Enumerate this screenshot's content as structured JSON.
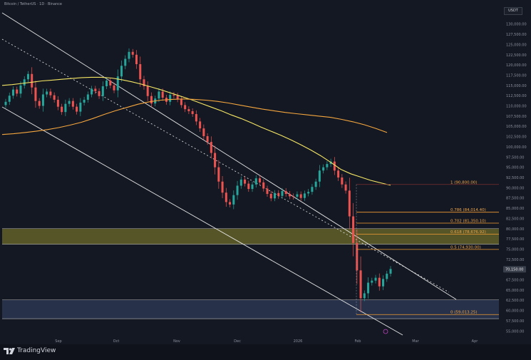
{
  "header": {
    "title": "Bitcoin / TetherUS · 1D · Binance"
  },
  "currency_label": "USDT",
  "logo": {
    "name": "TradingView"
  },
  "chart_data": {
    "type": "candlestick",
    "instrument": "Bitcoin / TetherUS",
    "x_ticks": [
      "Sep",
      "Oct",
      "Nov",
      "Dec",
      "2026",
      "Feb",
      "Mar",
      "Apr"
    ],
    "price_ticks": [
      130000,
      127500,
      125000,
      122500,
      120000,
      117500,
      115000,
      112500,
      110000,
      107500,
      105000,
      102500,
      100000,
      97500,
      95000,
      92500,
      90000,
      87500,
      85000,
      82500,
      80000,
      77500,
      75000,
      72500,
      70000,
      67500,
      65000,
      62500,
      60000,
      57500,
      55000
    ],
    "current_price": 70150,
    "series": [
      {
        "name": "close",
        "color": "#26a69a",
        "values": [
          111000,
          112500,
          114000,
          113000,
          115000,
          116500,
          117800,
          114500,
          111200,
          110000,
          112800,
          113500,
          112600,
          111500,
          109800,
          108500,
          110500,
          111200,
          109800,
          108600,
          110800,
          111500,
          112800,
          114200,
          113600,
          112400,
          114800,
          116200,
          115000,
          113800,
          117200,
          119800,
          121500,
          123200,
          122500,
          120200,
          116500,
          114800,
          112400,
          110600,
          111800,
          113500,
          112000,
          111000,
          112700,
          112500,
          111600,
          110200,
          109200,
          108700,
          108000,
          106200,
          104500,
          102600,
          101200,
          98500,
          95000,
          91500,
          88800,
          86500,
          85900,
          88200,
          90500,
          92000,
          91000,
          89700,
          90800,
          92300,
          91300,
          89800,
          88500,
          87400,
          88700,
          88000,
          89200,
          88500,
          87900,
          87800,
          88400,
          87500,
          88600,
          89000,
          90200,
          91500,
          94200,
          95000,
          95800,
          96400,
          94200,
          92500,
          90800,
          89300,
          83000,
          76500,
          69800,
          63000,
          64200,
          66800,
          67300,
          68000,
          65900,
          67700,
          69000,
          70150
        ]
      },
      {
        "name": "MA-50",
        "color": "#f5e663",
        "values": [
          115000,
          115200,
          115500,
          115800,
          116100,
          116300,
          116500,
          116700,
          116900,
          117000,
          117000,
          116800,
          116400,
          115900,
          115300,
          114600,
          113900,
          113100,
          112300,
          111500,
          110600,
          109700,
          108800,
          107800,
          106900,
          105900,
          104800,
          103800,
          102800,
          101700,
          100500,
          99200,
          97800,
          96200,
          94500,
          93400,
          92600,
          91800,
          91200,
          90600
        ]
      },
      {
        "name": "MA-200",
        "color": "#f5a63d",
        "values": [
          103000,
          103200,
          103500,
          103800,
          104200,
          104700,
          105300,
          106000,
          106900,
          107900,
          108800,
          109600,
          110400,
          111000,
          111400,
          111600,
          111700,
          111600,
          111400,
          111100,
          110700,
          110200,
          109700,
          109200,
          108800,
          108400,
          108100,
          107800,
          107500,
          107200,
          106700,
          106100,
          105400,
          104500,
          103500
        ]
      }
    ],
    "fibonacci": [
      {
        "level": "1",
        "value": 90800,
        "label": "1 (90,800.00)"
      },
      {
        "level": "0.786",
        "value": 84014.4,
        "label": "0.786 (84,014.40)"
      },
      {
        "level": "0.702",
        "value": 81350.1,
        "label": "0.702 (81,350.10)"
      },
      {
        "level": "0.618",
        "value": 78676.92,
        "label": "0.618 (78,676.92)"
      },
      {
        "level": "0.5",
        "value": 74930.0,
        "label": "0.5 (74,930.00)"
      },
      {
        "level": "0",
        "value": 59013.25,
        "label": "0 (59,013.25)"
      }
    ],
    "zones": [
      {
        "name": "supply-zone",
        "from": 76200,
        "to": 80000,
        "color": "#6b6a2a"
      },
      {
        "name": "demand-zone",
        "from": 58000,
        "to": 62600,
        "color": "#2e3b58"
      }
    ],
    "channel": {
      "color": "#e6e6e6"
    },
    "grid": false,
    "legend": "none"
  }
}
